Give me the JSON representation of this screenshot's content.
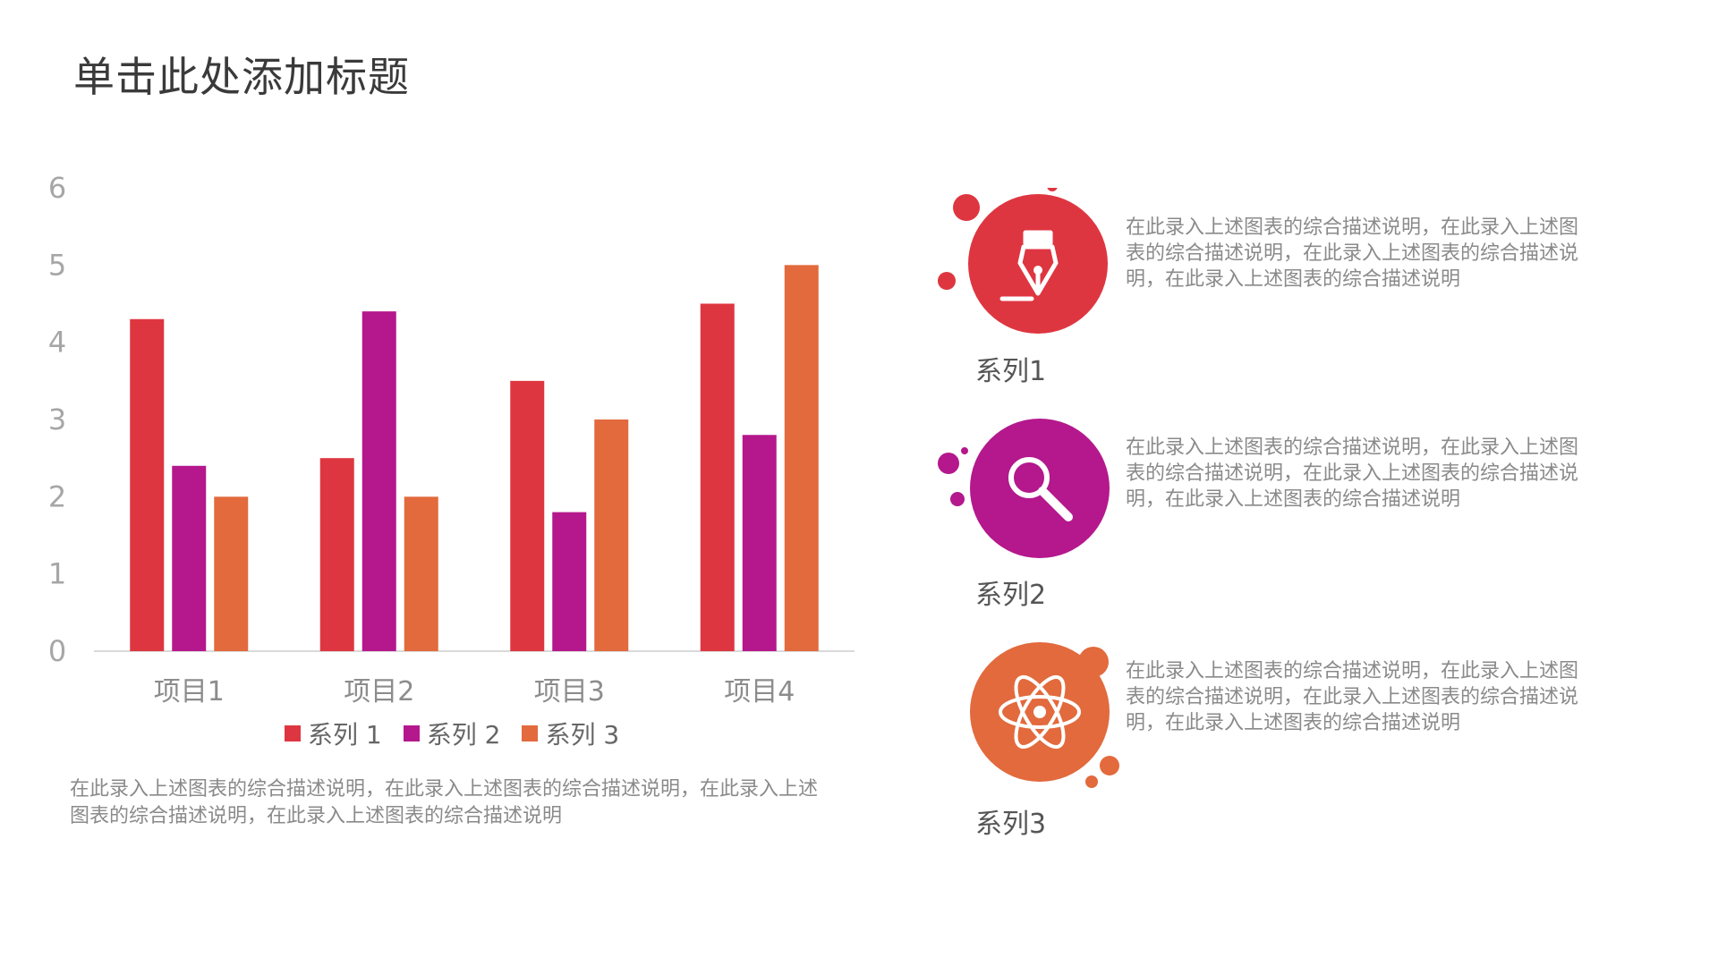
{
  "page": {
    "title": "单击此处添加标题"
  },
  "chart_data": {
    "type": "bar",
    "categories": [
      "项目1",
      "项目2",
      "项目3",
      "项目4"
    ],
    "series": [
      {
        "name": "系列 1",
        "values": [
          4.3,
          2.5,
          3.5,
          4.5
        ],
        "color": "#de3640"
      },
      {
        "name": "系列 2",
        "values": [
          2.4,
          4.4,
          1.8,
          2.8
        ],
        "color": "#b4188c"
      },
      {
        "name": "系列 3",
        "values": [
          2.0,
          2.0,
          3.0,
          5.0
        ],
        "color": "#e26a3d"
      }
    ],
    "yticks": [
      "0",
      "1",
      "2",
      "3",
      "4",
      "5",
      "6"
    ],
    "ylim": [
      0,
      6
    ],
    "grid": false,
    "legend": "bottom",
    "title": "",
    "xlabel": "",
    "ylabel": ""
  },
  "chart_description": "在此录入上述图表的综合描述说明，在此录入上述图表的综合描述说明，在此录入上述图表的综合描述说明，在此录入上述图表的综合描述说明",
  "series_cards": [
    {
      "name": "系列1",
      "icon": "pen-nib-icon",
      "color": "#de3640",
      "description": "在此录入上述图表的综合描述说明，在此录入上述图表的综合描述说明，在此录入上述图表的综合描述说明，在此录入上述图表的综合描述说明"
    },
    {
      "name": "系列2",
      "icon": "magnifier-icon",
      "color": "#b4188c",
      "description": "在此录入上述图表的综合描述说明，在此录入上述图表的综合描述说明，在此录入上述图表的综合描述说明，在此录入上述图表的综合描述说明"
    },
    {
      "name": "系列3",
      "icon": "atom-icon",
      "color": "#e26a3d",
      "description": "在此录入上述图表的综合描述说明，在此录入上述图表的综合描述说明，在此录入上述图表的综合描述说明，在此录入上述图表的综合描述说明"
    }
  ]
}
